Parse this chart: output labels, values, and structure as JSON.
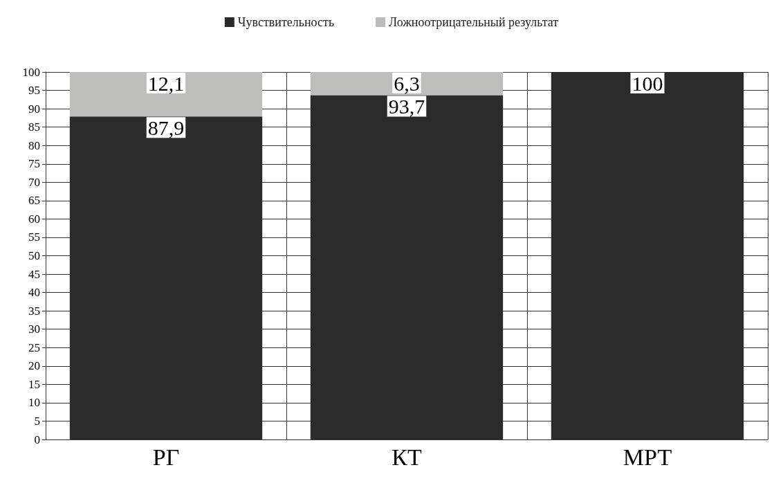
{
  "chart_data": {
    "type": "bar",
    "stacked": true,
    "categories": [
      "РГ",
      "КТ",
      "МРТ"
    ],
    "series": [
      {
        "name": "Чувствительность",
        "color": "#2b2b2b",
        "values": [
          87.9,
          93.7,
          100
        ],
        "value_labels": [
          "87,9",
          "93,7",
          "100"
        ]
      },
      {
        "name": "Ложноотрицательный результат",
        "color": "#bdbdb9",
        "values": [
          12.1,
          6.3,
          0
        ],
        "value_labels": [
          "12,1",
          "6,3",
          null
        ]
      }
    ],
    "ylim": [
      0,
      100
    ],
    "yticks": [
      0,
      5,
      10,
      15,
      20,
      25,
      30,
      35,
      40,
      45,
      50,
      55,
      60,
      65,
      70,
      75,
      80,
      85,
      90,
      95,
      100
    ],
    "grid": true,
    "legend": "top"
  }
}
